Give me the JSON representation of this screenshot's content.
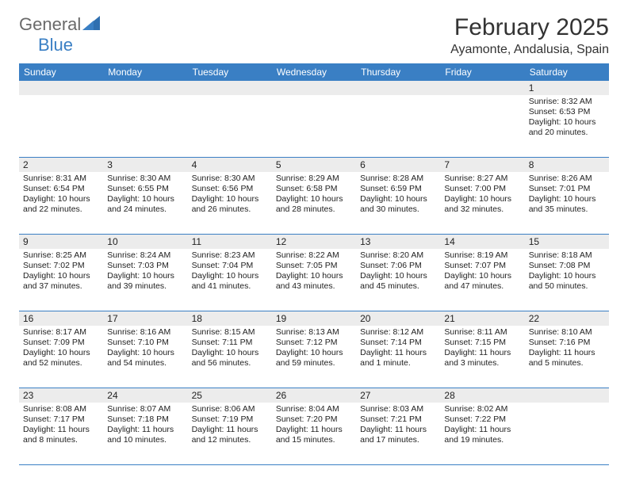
{
  "logo": {
    "general": "General",
    "blue": "Blue"
  },
  "title": "February 2025",
  "location": "Ayamonte, Andalusia, Spain",
  "colors": {
    "header_bar": "#3a7fc4",
    "band": "#ececec",
    "rule": "#3a7fc4",
    "logo_gray": "#6a6a6a",
    "logo_blue": "#3a7fc4",
    "background": "#ffffff"
  },
  "weekdays": [
    "Sunday",
    "Monday",
    "Tuesday",
    "Wednesday",
    "Thursday",
    "Friday",
    "Saturday"
  ],
  "weeks": [
    [
      null,
      null,
      null,
      null,
      null,
      null,
      {
        "n": "1",
        "sr": "Sunrise: 8:32 AM",
        "ss": "Sunset: 6:53 PM",
        "dl": "Daylight: 10 hours and 20 minutes."
      }
    ],
    [
      {
        "n": "2",
        "sr": "Sunrise: 8:31 AM",
        "ss": "Sunset: 6:54 PM",
        "dl": "Daylight: 10 hours and 22 minutes."
      },
      {
        "n": "3",
        "sr": "Sunrise: 8:30 AM",
        "ss": "Sunset: 6:55 PM",
        "dl": "Daylight: 10 hours and 24 minutes."
      },
      {
        "n": "4",
        "sr": "Sunrise: 8:30 AM",
        "ss": "Sunset: 6:56 PM",
        "dl": "Daylight: 10 hours and 26 minutes."
      },
      {
        "n": "5",
        "sr": "Sunrise: 8:29 AM",
        "ss": "Sunset: 6:58 PM",
        "dl": "Daylight: 10 hours and 28 minutes."
      },
      {
        "n": "6",
        "sr": "Sunrise: 8:28 AM",
        "ss": "Sunset: 6:59 PM",
        "dl": "Daylight: 10 hours and 30 minutes."
      },
      {
        "n": "7",
        "sr": "Sunrise: 8:27 AM",
        "ss": "Sunset: 7:00 PM",
        "dl": "Daylight: 10 hours and 32 minutes."
      },
      {
        "n": "8",
        "sr": "Sunrise: 8:26 AM",
        "ss": "Sunset: 7:01 PM",
        "dl": "Daylight: 10 hours and 35 minutes."
      }
    ],
    [
      {
        "n": "9",
        "sr": "Sunrise: 8:25 AM",
        "ss": "Sunset: 7:02 PM",
        "dl": "Daylight: 10 hours and 37 minutes."
      },
      {
        "n": "10",
        "sr": "Sunrise: 8:24 AM",
        "ss": "Sunset: 7:03 PM",
        "dl": "Daylight: 10 hours and 39 minutes."
      },
      {
        "n": "11",
        "sr": "Sunrise: 8:23 AM",
        "ss": "Sunset: 7:04 PM",
        "dl": "Daylight: 10 hours and 41 minutes."
      },
      {
        "n": "12",
        "sr": "Sunrise: 8:22 AM",
        "ss": "Sunset: 7:05 PM",
        "dl": "Daylight: 10 hours and 43 minutes."
      },
      {
        "n": "13",
        "sr": "Sunrise: 8:20 AM",
        "ss": "Sunset: 7:06 PM",
        "dl": "Daylight: 10 hours and 45 minutes."
      },
      {
        "n": "14",
        "sr": "Sunrise: 8:19 AM",
        "ss": "Sunset: 7:07 PM",
        "dl": "Daylight: 10 hours and 47 minutes."
      },
      {
        "n": "15",
        "sr": "Sunrise: 8:18 AM",
        "ss": "Sunset: 7:08 PM",
        "dl": "Daylight: 10 hours and 50 minutes."
      }
    ],
    [
      {
        "n": "16",
        "sr": "Sunrise: 8:17 AM",
        "ss": "Sunset: 7:09 PM",
        "dl": "Daylight: 10 hours and 52 minutes."
      },
      {
        "n": "17",
        "sr": "Sunrise: 8:16 AM",
        "ss": "Sunset: 7:10 PM",
        "dl": "Daylight: 10 hours and 54 minutes."
      },
      {
        "n": "18",
        "sr": "Sunrise: 8:15 AM",
        "ss": "Sunset: 7:11 PM",
        "dl": "Daylight: 10 hours and 56 minutes."
      },
      {
        "n": "19",
        "sr": "Sunrise: 8:13 AM",
        "ss": "Sunset: 7:12 PM",
        "dl": "Daylight: 10 hours and 59 minutes."
      },
      {
        "n": "20",
        "sr": "Sunrise: 8:12 AM",
        "ss": "Sunset: 7:14 PM",
        "dl": "Daylight: 11 hours and 1 minute."
      },
      {
        "n": "21",
        "sr": "Sunrise: 8:11 AM",
        "ss": "Sunset: 7:15 PM",
        "dl": "Daylight: 11 hours and 3 minutes."
      },
      {
        "n": "22",
        "sr": "Sunrise: 8:10 AM",
        "ss": "Sunset: 7:16 PM",
        "dl": "Daylight: 11 hours and 5 minutes."
      }
    ],
    [
      {
        "n": "23",
        "sr": "Sunrise: 8:08 AM",
        "ss": "Sunset: 7:17 PM",
        "dl": "Daylight: 11 hours and 8 minutes."
      },
      {
        "n": "24",
        "sr": "Sunrise: 8:07 AM",
        "ss": "Sunset: 7:18 PM",
        "dl": "Daylight: 11 hours and 10 minutes."
      },
      {
        "n": "25",
        "sr": "Sunrise: 8:06 AM",
        "ss": "Sunset: 7:19 PM",
        "dl": "Daylight: 11 hours and 12 minutes."
      },
      {
        "n": "26",
        "sr": "Sunrise: 8:04 AM",
        "ss": "Sunset: 7:20 PM",
        "dl": "Daylight: 11 hours and 15 minutes."
      },
      {
        "n": "27",
        "sr": "Sunrise: 8:03 AM",
        "ss": "Sunset: 7:21 PM",
        "dl": "Daylight: 11 hours and 17 minutes."
      },
      {
        "n": "28",
        "sr": "Sunrise: 8:02 AM",
        "ss": "Sunset: 7:22 PM",
        "dl": "Daylight: 11 hours and 19 minutes."
      },
      null
    ]
  ]
}
